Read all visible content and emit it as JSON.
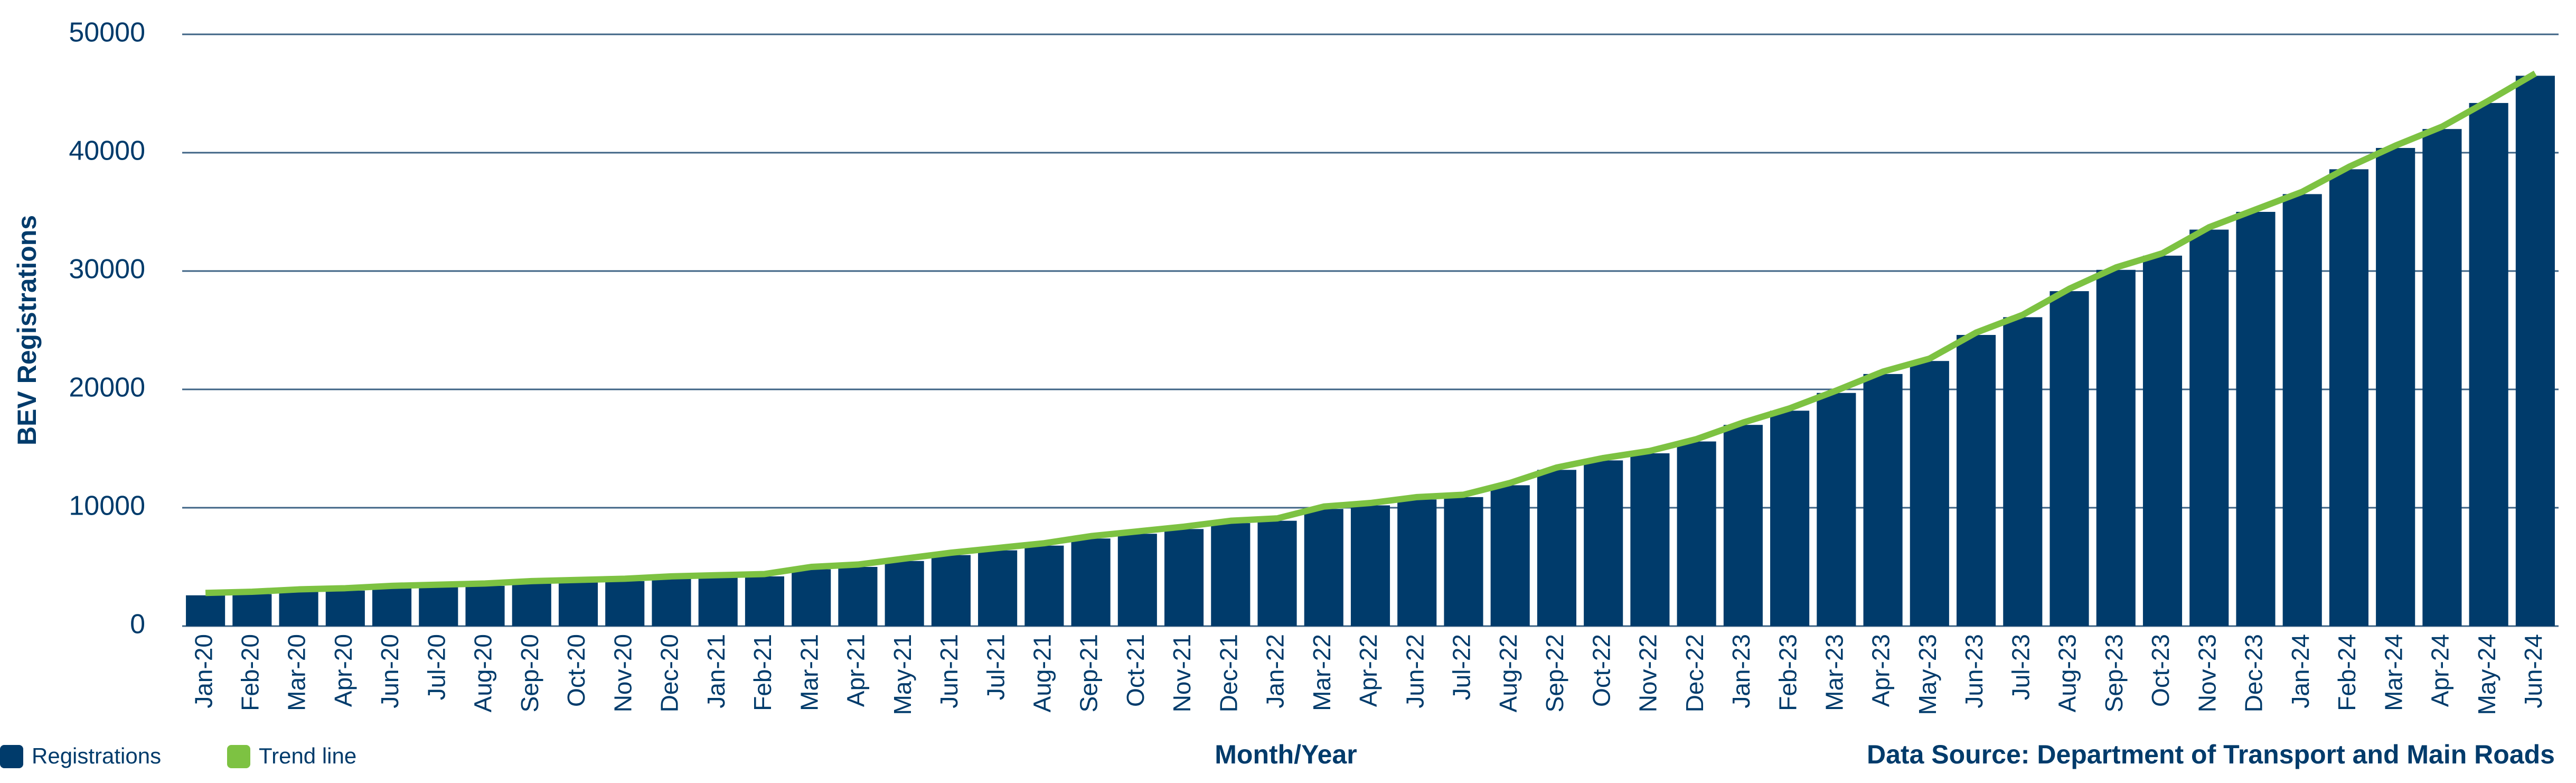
{
  "chart_data": {
    "type": "bar",
    "y_label": "BEV Registrations",
    "x_label": "Month/Year",
    "source": "Data Source:  Department of Transport and Main Roads",
    "categories": [
      "Jan-20",
      "Feb-20",
      "Mar-20",
      "Apr-20",
      "Jun-20",
      "Jul-20",
      "Aug-20",
      "Sep-20",
      "Oct-20",
      "Nov-20",
      "Dec-20",
      "Jan-21",
      "Feb-21",
      "Mar-21",
      "Apr-21",
      "May-21",
      "Jun-21",
      "Jul-21",
      "Aug-21",
      "Sep-21",
      "Oct-21",
      "Nov-21",
      "Dec-21",
      "Jan-22",
      "Mar-22",
      "Apr-22",
      "Jun-22",
      "Jul-22",
      "Aug-22",
      "Sep-22",
      "Oct-22",
      "Nov-22",
      "Dec-22",
      "Jan-23",
      "Feb-23",
      "Mar-23",
      "Apr-23",
      "May-23",
      "Jun-23",
      "Jul-23",
      "Aug-23",
      "Sep-23",
      "Oct-23",
      "Nov-23",
      "Dec-23",
      "Jan-24",
      "Feb-24",
      "Mar-24",
      "Apr-24",
      "May-24",
      "Jun-24"
    ],
    "series": [
      {
        "name": "Registrations",
        "color": "#003b6b",
        "kind": "bar",
        "values": [
          2600,
          2700,
          2900,
          3000,
          3200,
          3300,
          3400,
          3600,
          3700,
          3800,
          4000,
          4100,
          4200,
          4800,
          5000,
          5500,
          6000,
          6400,
          6800,
          7400,
          7800,
          8200,
          8700,
          8900,
          9900,
          10200,
          10700,
          10900,
          11900,
          13200,
          14000,
          14600,
          15600,
          17000,
          18200,
          19700,
          21300,
          22400,
          24600,
          26100,
          28300,
          30100,
          31300,
          33500,
          35000,
          36500,
          38600,
          40400,
          42000,
          44200,
          46500
        ]
      },
      {
        "name": "Trend line",
        "color": "#7dc242",
        "kind": "line",
        "values": [
          2800,
          2900,
          3100,
          3200,
          3400,
          3500,
          3600,
          3800,
          3900,
          4000,
          4200,
          4300,
          4400,
          5000,
          5200,
          5700,
          6200,
          6600,
          7000,
          7600,
          8000,
          8400,
          8900,
          9100,
          10100,
          10400,
          10900,
          11100,
          12100,
          13400,
          14200,
          14800,
          15800,
          17200,
          18400,
          19900,
          21500,
          22600,
          24800,
          26300,
          28500,
          30300,
          31500,
          33700,
          35200,
          36700,
          38800,
          40600,
          42200,
          44400,
          46700
        ]
      }
    ],
    "ylim": [
      0,
      50000
    ],
    "yticks": [
      0,
      10000,
      20000,
      30000,
      40000,
      50000
    ],
    "grid": true
  }
}
